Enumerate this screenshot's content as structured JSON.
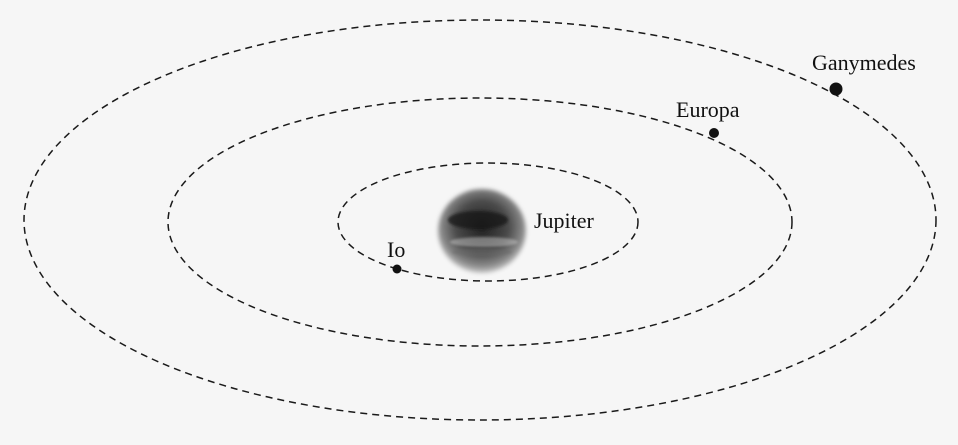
{
  "diagram": {
    "colors": {
      "background": "#f6f6f6",
      "orbit": "#1a1a1a",
      "moon": "#111111",
      "planet_dark": "#1f1f1f",
      "planet_light": "#b8b8b8"
    },
    "planet": {
      "label": "Jupiter"
    },
    "moons": [
      {
        "label": "Io"
      },
      {
        "label": "Europa"
      },
      {
        "label": "Ganymedes"
      }
    ]
  }
}
